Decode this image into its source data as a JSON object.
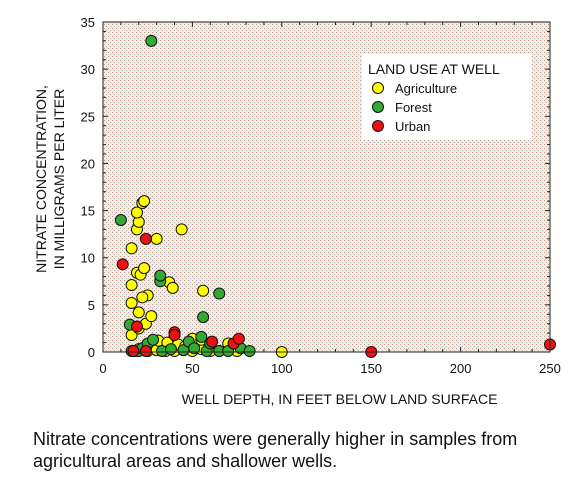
{
  "caption": "Nitrate concentrations were generally higher in samples from agricultural areas and shallower wells.",
  "chart_data": {
    "type": "scatter",
    "xlabel": "WELL DEPTH, IN FEET BELOW LAND SURFACE",
    "ylabel_lines": [
      "NITRATE CONCENTRATION,",
      "IN MILLIGRAMS PER LITER"
    ],
    "xlim": [
      0,
      250
    ],
    "ylim": [
      0,
      35
    ],
    "xticks": [
      0,
      50,
      100,
      150,
      200,
      250
    ],
    "yticks": [
      0,
      5,
      10,
      15,
      20,
      25,
      30,
      35
    ],
    "plot_background": "#ece6da",
    "legend": {
      "title": "LAND USE AT WELL",
      "placement": "top-right"
    },
    "series": [
      {
        "name": "Agriculture",
        "color": "#ffff00",
        "points": [
          [
            18,
            0.1
          ],
          [
            20,
            0.3
          ],
          [
            25,
            0.1
          ],
          [
            30,
            0.2
          ],
          [
            35,
            0.1
          ],
          [
            40,
            0.1
          ],
          [
            45,
            0.2
          ],
          [
            50,
            0.1
          ],
          [
            55,
            0.3
          ],
          [
            60,
            0.1
          ],
          [
            65,
            0.1
          ],
          [
            75,
            0.1
          ],
          [
            100,
            0.0
          ],
          [
            16,
            1.8
          ],
          [
            20,
            2.5
          ],
          [
            24,
            3.0
          ],
          [
            27,
            3.8
          ],
          [
            31,
            1.2
          ],
          [
            36,
            1.0
          ],
          [
            42,
            0.8
          ],
          [
            46,
            0.6
          ],
          [
            50,
            1.4
          ],
          [
            55,
            1.3
          ],
          [
            60,
            0.9
          ],
          [
            70,
            0.9
          ],
          [
            75,
            0.9
          ],
          [
            16,
            5.2
          ],
          [
            19,
            8.4
          ],
          [
            21,
            8.2
          ],
          [
            23,
            8.9
          ],
          [
            25,
            6.0
          ],
          [
            16,
            7.1
          ],
          [
            20,
            4.2
          ],
          [
            22,
            5.8
          ],
          [
            16,
            11.0
          ],
          [
            19,
            13.0
          ],
          [
            20,
            13.8
          ],
          [
            19,
            14.8
          ],
          [
            22,
            15.8
          ],
          [
            23,
            16.0
          ],
          [
            30,
            12.0
          ],
          [
            44,
            13.0
          ],
          [
            37,
            7.4
          ],
          [
            39,
            6.8
          ],
          [
            56,
            6.5
          ]
        ]
      },
      {
        "name": "Forest",
        "color": "#33aa33",
        "points": [
          [
            27,
            33.0
          ],
          [
            10,
            14.0
          ],
          [
            15,
            2.9
          ],
          [
            16,
            0.1
          ],
          [
            20,
            0.1
          ],
          [
            22,
            0.4
          ],
          [
            25,
            0.9
          ],
          [
            28,
            1.3
          ],
          [
            33,
            0.1
          ],
          [
            38,
            0.3
          ],
          [
            45,
            0.2
          ],
          [
            48,
            1.1
          ],
          [
            51,
            0.4
          ],
          [
            55,
            1.6
          ],
          [
            58,
            0.1
          ],
          [
            60,
            0.9
          ],
          [
            65,
            0.1
          ],
          [
            70,
            0.1
          ],
          [
            77,
            0.4
          ],
          [
            82,
            0.1
          ],
          [
            32,
            7.5
          ],
          [
            32,
            8.1
          ],
          [
            56,
            3.7
          ],
          [
            65,
            6.2
          ]
        ]
      },
      {
        "name": "Urban",
        "color": "#ee1111",
        "points": [
          [
            11,
            9.3
          ],
          [
            24,
            12.0
          ],
          [
            19,
            2.7
          ],
          [
            40,
            2.1
          ],
          [
            40,
            1.8
          ],
          [
            61,
            1.1
          ],
          [
            73,
            0.9
          ],
          [
            76,
            1.4
          ],
          [
            17,
            0.1
          ],
          [
            24,
            0.1
          ],
          [
            150,
            0.0
          ],
          [
            250,
            0.8
          ]
        ]
      }
    ]
  }
}
